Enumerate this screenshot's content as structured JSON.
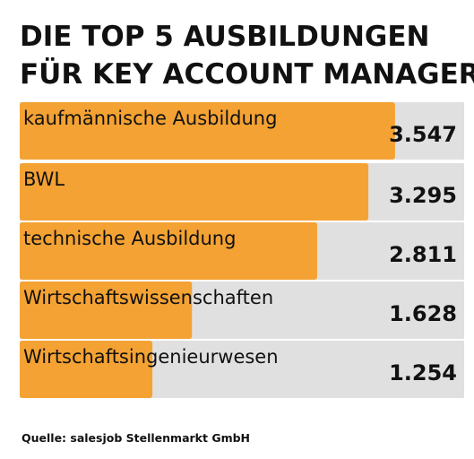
{
  "title_lines": [
    "DIE TOP 5 AUSBILDUNGEN",
    "FÜR KEY ACCOUNT MANAGER"
  ],
  "source": "Quelle: salesjob Stellenmarkt GmbH",
  "colors": {
    "bar": "#F4A233",
    "track": "#E0E0E0",
    "text": "#111111"
  },
  "chart_data": {
    "type": "bar",
    "orientation": "horizontal",
    "categories": [
      "kaufmännische Ausbildung",
      "BWL",
      "technische Ausbildung",
      "Wirtschaftswissenschaften",
      "Wirtschaftsingenieurwesen"
    ],
    "values": [
      3547,
      3295,
      2811,
      1628,
      1254
    ],
    "value_labels": [
      "3.547",
      "3.295",
      "2.811",
      "1.628",
      "1.254"
    ],
    "xlim": [
      0,
      4200
    ]
  }
}
